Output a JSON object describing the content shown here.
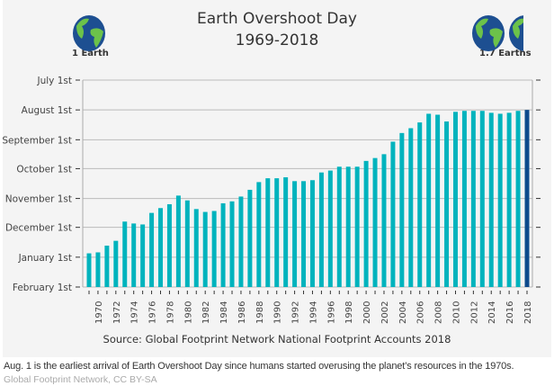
{
  "chart_data": {
    "type": "bar",
    "title": "Earth Overshoot Day",
    "subtitle": "1969-2018",
    "source": "Source: Global Footprint Network National Footprint Accounts 2018",
    "left_annotation": "1 Earth",
    "right_annotation": "1.7 Earths",
    "y_tick_labels": [
      "July 1st",
      "August 1st",
      "September 1st",
      "October 1st",
      "November 1st",
      "December 1st",
      "January 1st",
      "February 1st"
    ],
    "y_axis_order": "reversed dates, later dates lower",
    "x_tick_labels": [
      "1970",
      "1972",
      "1974",
      "1976",
      "1978",
      "1980",
      "1982",
      "1984",
      "1986",
      "1988",
      "1990",
      "1992",
      "1994",
      "1996",
      "1998",
      "2000",
      "2002",
      "2004",
      "2006",
      "2008",
      "2010",
      "2012",
      "2014",
      "2016",
      "2018"
    ],
    "categories": [
      1969,
      1970,
      1971,
      1972,
      1973,
      1974,
      1975,
      1976,
      1977,
      1978,
      1979,
      1980,
      1981,
      1982,
      1983,
      1984,
      1985,
      1986,
      1987,
      1988,
      1989,
      1990,
      1991,
      1992,
      1993,
      1994,
      1995,
      1996,
      1997,
      1998,
      1999,
      2000,
      2001,
      2002,
      2003,
      2004,
      2005,
      2006,
      2007,
      2008,
      2009,
      2010,
      2011,
      2012,
      2013,
      2014,
      2015,
      2016,
      2017,
      2018
    ],
    "values": [
      "12-28",
      "12-27",
      "12-20",
      "12-15",
      "11-25",
      "11-27",
      "11-28",
      "11-16",
      "11-11",
      "11-07",
      "10-29",
      "11-03",
      "11-12",
      "11-15",
      "11-14",
      "11-06",
      "11-04",
      "10-30",
      "10-23",
      "10-15",
      "10-11",
      "10-11",
      "10-10",
      "10-14",
      "10-14",
      "10-13",
      "10-05",
      "10-03",
      "09-29",
      "09-29",
      "09-29",
      "09-23",
      "09-20",
      "09-16",
      "09-03",
      "08-25",
      "08-20",
      "08-14",
      "08-05",
      "08-06",
      "08-13",
      "08-03",
      "08-02",
      "08-02",
      "08-02",
      "08-04",
      "08-05",
      "08-04",
      "08-02",
      "08-01"
    ],
    "colors": {
      "bar": "#00b3bd",
      "highlight": "#0d4a8c",
      "grid": "#bbbbbb"
    },
    "grid": true
  },
  "caption": "Aug. 1 is the earliest arrival of Earth Overshoot Day since humans started overusing the planet’s resources in the 1970s.",
  "credit": "Global Footprint Network, CC BY-SA"
}
